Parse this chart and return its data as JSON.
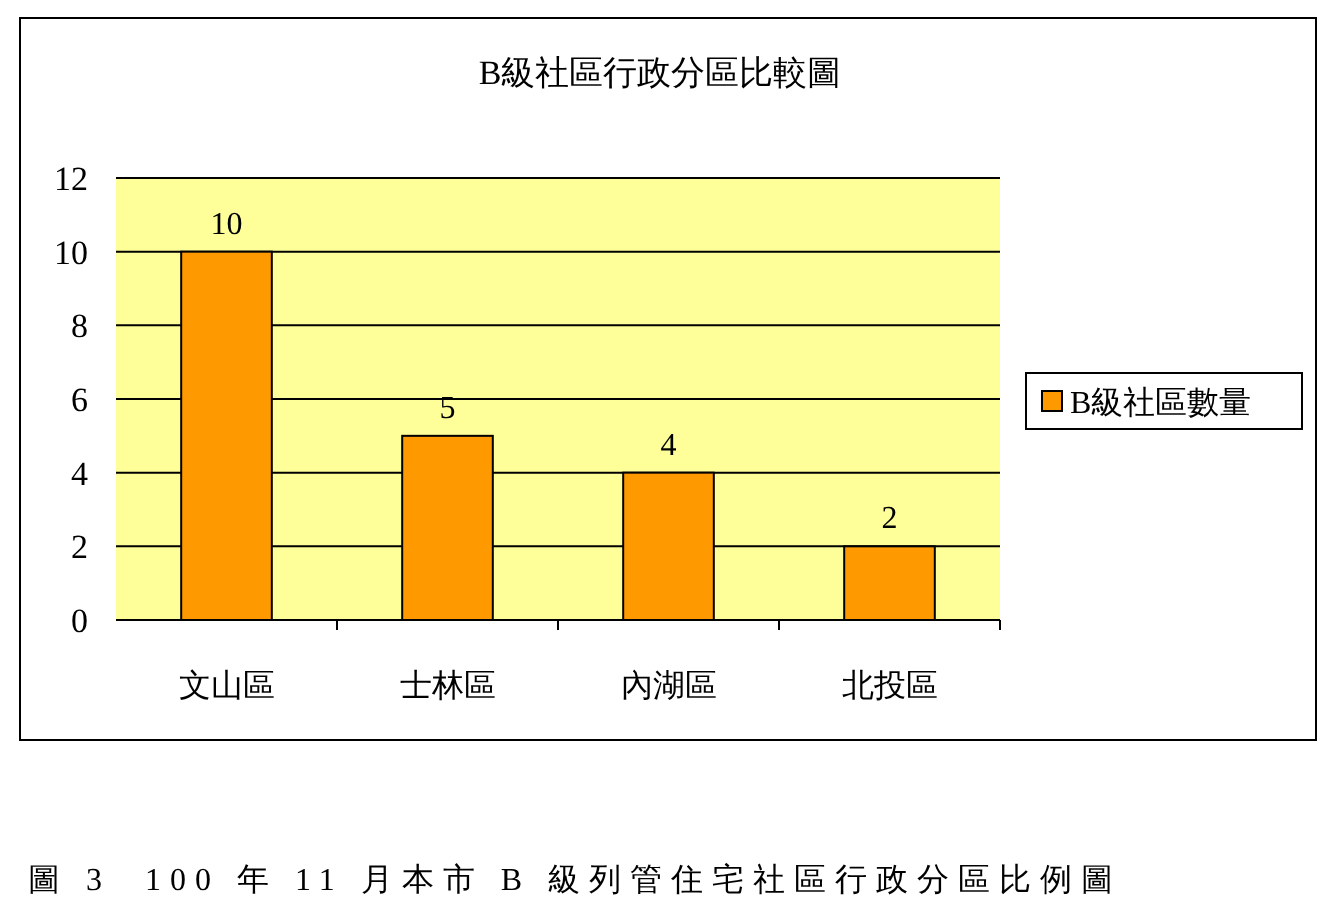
{
  "chart_data": {
    "type": "bar",
    "title": "B級社區行政分區比較圖",
    "categories": [
      "文山區",
      "士林區",
      "內湖區",
      "北投區"
    ],
    "series": [
      {
        "name": "B級社區數量",
        "color": "#ff9900",
        "values": [
          10,
          5,
          4,
          2
        ]
      }
    ],
    "ylim": [
      0,
      12
    ],
    "yticks": [
      0,
      2,
      4,
      6,
      8,
      10,
      12
    ],
    "grid": "y",
    "legend": "right",
    "data_labels": true,
    "annotations": [
      "圖 3  100 年 11 月本市 B 級列管住宅社區行政分區比例圖"
    ]
  }
}
